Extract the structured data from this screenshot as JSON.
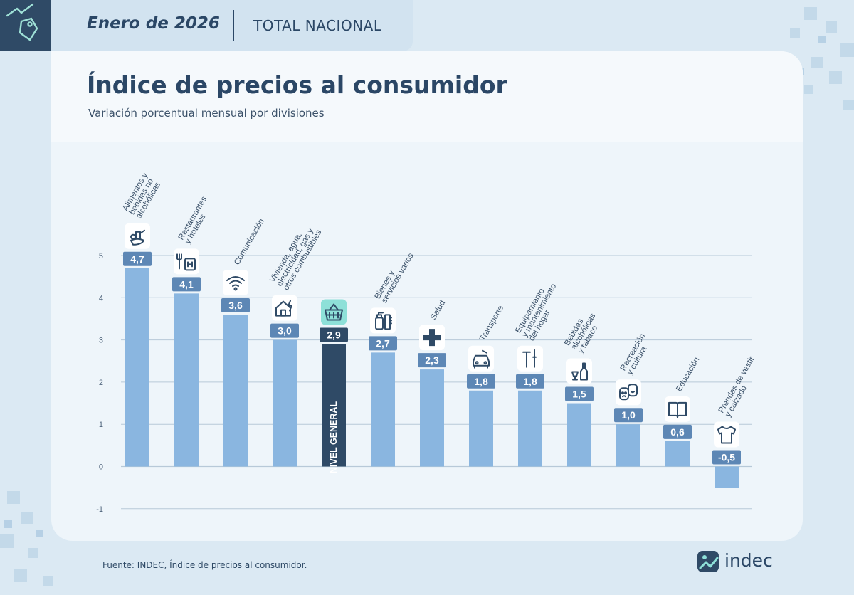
{
  "header": {
    "period": "Enero de 2026",
    "scope": "TOTAL NACIONAL"
  },
  "title": "Índice de precios al consumidor",
  "subtitle": "Variación porcentual mensual por divisiones",
  "source": "Fuente: INDEC, Índice de precios al consumidor.",
  "brand": {
    "name": "indec",
    "icon": "indec-logo-icon"
  },
  "colors": {
    "bar": "#8ab6e0",
    "highlight_bar": "#2f4a66",
    "label_box": "#5d87b5",
    "highlight_label_box": "#2f4a66",
    "highlight_icon_bg": "#8ee0d8",
    "grid": "#b7c9d8",
    "text": "#2b4766"
  },
  "chart_data": {
    "type": "bar",
    "title": "Índice de precios al consumidor",
    "subtitle": "Variación porcentual mensual por divisiones",
    "ylim": [
      -1,
      5
    ],
    "yticks": [
      "5",
      "4",
      "3",
      "2",
      "1",
      "0",
      "-1"
    ],
    "grid": true,
    "highlight_index": 4,
    "inside_bar_label": "NIVEL GENERAL",
    "categories": [
      "Alimentos y bebidas no alcohólicas",
      "Restaurantes y hoteles",
      "Comunicación",
      "Vivienda, agua, electricidad, gas y otros combustibles",
      "",
      "Bienes y servicios varios",
      "Salud",
      "Transporte",
      "Equipamiento y mantenimiento del hogar",
      "Bebidas alcohólicas y tabaco",
      "Recreación y cultura",
      "Educación",
      "Prendas de vestir y calzado"
    ],
    "category_lines": [
      [
        "Alimentos y",
        "bebidas no",
        "alcohólicas"
      ],
      [
        "Restaurantes",
        "y hoteles"
      ],
      [
        "Comunicación"
      ],
      [
        "Vivienda, agua,",
        "electricidad, gas y",
        "otros combustibles"
      ],
      [],
      [
        "Bienes y",
        "servicios varios"
      ],
      [
        "Salud"
      ],
      [
        "Transporte"
      ],
      [
        "Equipamiento",
        "y mantenimiento",
        "del hogar"
      ],
      [
        "Bebidas",
        "alcohólicas",
        "y tabaco"
      ],
      [
        "Recreación",
        "y cultura"
      ],
      [
        "Educación"
      ],
      [
        "Prendas de vestir",
        "y calzado"
      ]
    ],
    "values": [
      4.7,
      4.1,
      3.6,
      3.0,
      2.9,
      2.7,
      2.3,
      1.8,
      1.8,
      1.5,
      1.0,
      0.6,
      -0.5
    ],
    "value_labels": [
      "4,7",
      "4,1",
      "3,6",
      "3,0",
      "2,9",
      "2,7",
      "2,3",
      "1,8",
      "1,8",
      "1,5",
      "1,0",
      "0,6",
      "-0,5"
    ],
    "icons": [
      "food-basket-icon",
      "restaurant-hotel-icon",
      "wifi-icon",
      "house-energy-icon",
      "shopping-basket-icon",
      "personal-care-icon",
      "health-cross-icon",
      "car-icon",
      "tools-icon",
      "bottle-glass-icon",
      "theater-masks-icon",
      "book-icon",
      "tshirt-icon"
    ]
  }
}
